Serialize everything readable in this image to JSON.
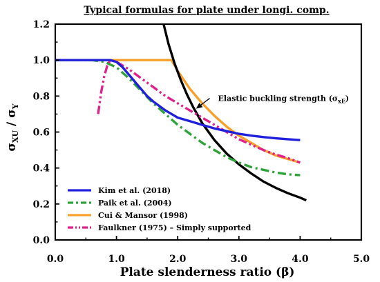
{
  "chart_data": {
    "type": "line",
    "title": "Typical formulas for plate under longi. comp.",
    "xlabel": "Plate slenderness ratio (β)",
    "ylabel_main": "σ",
    "ylabel_main_sub": "XU",
    "ylabel_sep": " / ",
    "ylabel_denom": "σ",
    "ylabel_denom_sub": "Y",
    "xlim": [
      0.0,
      5.0
    ],
    "ylim": [
      0.0,
      1.2
    ],
    "xticks": [
      "0.0",
      "1.0",
      "2.0",
      "3.0",
      "4.0",
      "5.0"
    ],
    "yticks": [
      "0.0",
      "0.2",
      "0.4",
      "0.6",
      "0.8",
      "1.0",
      "1.2"
    ],
    "grid": false,
    "legend_position": "bottom-left",
    "annotation": {
      "text": "Elastic buckling strength (σ",
      "sub": "xE",
      "close": ")",
      "point_at": [
        2.3,
        0.73
      ],
      "label_at": [
        2.5,
        0.78
      ]
    },
    "series": [
      {
        "name": "Kim et al. (2018)",
        "color": "#1f1fdc",
        "dash": "solid",
        "x": [
          0.0,
          0.8,
          0.9,
          1.0,
          1.1,
          1.2,
          1.3,
          1.4,
          1.5,
          1.6,
          1.8,
          2.0,
          2.2,
          2.4,
          2.6,
          2.8,
          3.0,
          3.2,
          3.4,
          3.6,
          3.8,
          4.0
        ],
        "y": [
          1.0,
          1.0,
          1.0,
          0.99,
          0.96,
          0.92,
          0.88,
          0.84,
          0.8,
          0.77,
          0.72,
          0.68,
          0.66,
          0.64,
          0.62,
          0.605,
          0.59,
          0.58,
          0.572,
          0.565,
          0.56,
          0.555
        ]
      },
      {
        "name": "Paik et al. (2004)",
        "color": "#2ea33a",
        "dash": "dashdot",
        "x": [
          0.0,
          0.6,
          0.8,
          1.0,
          1.2,
          1.4,
          1.6,
          1.8,
          2.0,
          2.2,
          2.4,
          2.6,
          2.8,
          3.0,
          3.2,
          3.4,
          3.6,
          3.8,
          4.0
        ],
        "y": [
          1.0,
          1.0,
          0.99,
          0.96,
          0.9,
          0.83,
          0.76,
          0.7,
          0.64,
          0.59,
          0.54,
          0.5,
          0.46,
          0.43,
          0.405,
          0.39,
          0.375,
          0.365,
          0.36
        ]
      },
      {
        "name": "Cui & Mansor (1998)",
        "color": "#f7a02a",
        "dash": "solid",
        "x": [
          0.0,
          1.0,
          1.9,
          2.0,
          2.2,
          2.4,
          2.6,
          2.8,
          3.0,
          3.2,
          3.4,
          3.6,
          3.8,
          4.0
        ],
        "y": [
          1.0,
          1.0,
          1.0,
          0.94,
          0.84,
          0.76,
          0.69,
          0.63,
          0.58,
          0.54,
          0.5,
          0.47,
          0.45,
          0.43
        ]
      },
      {
        "name": "Faulkner (1975) – Simply supported",
        "color": "#e0218a",
        "dash": "dashdotdot",
        "x": [
          0.7,
          0.75,
          0.8,
          0.85,
          0.9,
          1.0,
          1.2,
          1.4,
          1.6,
          1.8,
          2.0,
          2.2,
          2.4,
          2.6,
          2.8,
          3.0,
          3.2,
          3.4,
          3.6,
          3.8,
          4.0
        ],
        "y": [
          0.7,
          0.82,
          0.91,
          0.97,
          1.0,
          0.99,
          0.95,
          0.9,
          0.85,
          0.8,
          0.76,
          0.72,
          0.68,
          0.64,
          0.6,
          0.56,
          0.53,
          0.5,
          0.475,
          0.455,
          0.43
        ]
      },
      {
        "name": "",
        "color": "#000000",
        "dash": "solid",
        "x": [
          1.77,
          1.85,
          1.95,
          2.05,
          2.15,
          2.25,
          2.4,
          2.6,
          2.8,
          3.0,
          3.2,
          3.4,
          3.6,
          3.8,
          4.0,
          4.1
        ],
        "y": [
          1.2,
          1.09,
          0.98,
          0.89,
          0.81,
          0.74,
          0.65,
          0.555,
          0.48,
          0.42,
          0.37,
          0.325,
          0.29,
          0.26,
          0.235,
          0.22
        ]
      }
    ]
  }
}
